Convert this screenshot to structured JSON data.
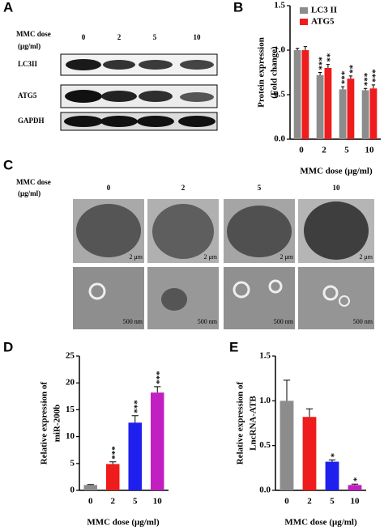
{
  "panel_a": {
    "panel_label": "A",
    "dose_label": [
      "MMC dose",
      "(μg/ml)"
    ],
    "doses": [
      "0",
      "2",
      "5",
      "10"
    ],
    "rows": [
      "LC3II",
      "ATG5",
      "GAPDH"
    ]
  },
  "panel_c": {
    "panel_label": "C",
    "dose_label": [
      "MMC dose",
      "(μg/ml)"
    ],
    "doses": [
      "0",
      "2",
      "5",
      "10"
    ],
    "scale_top": [
      "2 μm",
      "2 μm",
      "2 μm",
      "2 μm"
    ],
    "scale_bottom": [
      "500 nm",
      "500 nm",
      "500 nm",
      "500 nm"
    ]
  },
  "chart_data": [
    {
      "type": "bar",
      "panel_label": "B",
      "ylabel": [
        "Protein expression",
        "(Fold change)"
      ],
      "xlabel": "MMC dose (μg/ml)",
      "categories": [
        "0",
        "2",
        "5",
        "10"
      ],
      "series": [
        {
          "name": "LC3 II",
          "color": "#8c8c8c",
          "values": [
            1.0,
            0.72,
            0.56,
            0.55
          ],
          "errors": [
            0.02,
            0.03,
            0.03,
            0.02
          ],
          "significance": [
            null,
            "***",
            "***",
            "***"
          ]
        },
        {
          "name": "ATG5",
          "color": "#ee1c1c",
          "values": [
            1.0,
            0.8,
            0.68,
            0.57
          ],
          "errors": [
            0.04,
            0.04,
            0.03,
            0.04
          ],
          "significance": [
            null,
            "**",
            "**",
            "***"
          ]
        }
      ],
      "ylim": [
        0,
        1.5
      ],
      "yticks": [
        {
          "value": 0,
          "label": "0.0"
        },
        {
          "value": 0.5,
          "label": "0.5"
        },
        {
          "value": 1,
          "label": "1.0"
        },
        {
          "value": 1.5,
          "label": "1.5"
        }
      ],
      "legend": "top-left"
    },
    {
      "type": "bar",
      "panel_label": "D",
      "ylabel": [
        "Relative expression of",
        "miR-200b"
      ],
      "xlabel": "MMC dose (μg/ml)",
      "categories": [
        "0",
        "2",
        "5",
        "10"
      ],
      "values": [
        1.0,
        4.9,
        12.6,
        18.2
      ],
      "errors": [
        0.1,
        0.4,
        1.3,
        1.1
      ],
      "colors": [
        "#8c8c8c",
        "#ee1c1c",
        "#1f1fee",
        "#c21fc2"
      ],
      "significance": [
        null,
        "***",
        "***",
        "***"
      ],
      "ylim": [
        0,
        25
      ],
      "yticks": [
        0,
        5,
        10,
        15,
        20,
        25
      ]
    },
    {
      "type": "bar",
      "panel_label": "E",
      "ylabel": [
        "Relative expression of",
        "LncRNA-ATB"
      ],
      "xlabel": "MMC dose (μg/ml)",
      "categories": [
        "0",
        "2",
        "5",
        "10"
      ],
      "values": [
        1.0,
        0.82,
        0.32,
        0.06
      ],
      "errors": [
        0.23,
        0.09,
        0.02,
        0.01
      ],
      "colors": [
        "#8c8c8c",
        "#ee1c1c",
        "#1f1fee",
        "#c21fc2"
      ],
      "significance": [
        null,
        null,
        "*",
        "*"
      ],
      "ylim": [
        0,
        1.5
      ],
      "yticks": [
        {
          "value": 0,
          "label": "0.0"
        },
        {
          "value": 0.5,
          "label": "0.5"
        },
        {
          "value": 1,
          "label": "1.0"
        },
        {
          "value": 1.5,
          "label": "1.5"
        }
      ]
    }
  ]
}
